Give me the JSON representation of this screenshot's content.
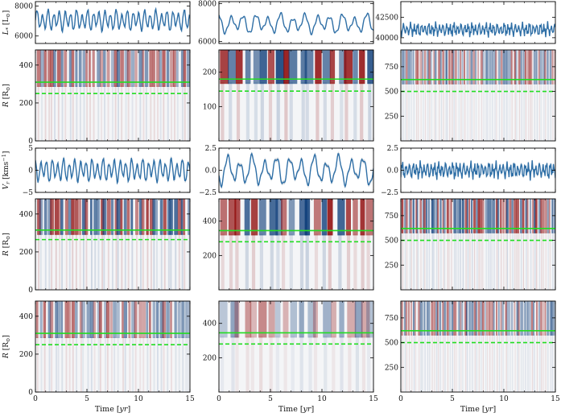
{
  "chart_data": {
    "type": "line+heatmap grid",
    "xlabel": "Time [yr]",
    "xlabel_parts": {
      "pre": "Time [",
      "var": "yr",
      "post": "]"
    },
    "xlim": [
      0,
      15
    ],
    "xticks": [
      "0",
      "5",
      "10",
      "15"
    ],
    "row_labels": {
      "lum": {
        "var": "L",
        "sub": "*",
        "unit": "[L",
        "unitsub": "⊙",
        "close": "]"
      },
      "rad": {
        "var": "R",
        "unit": "[R",
        "unitsub": "⊙",
        "close": "]"
      },
      "vel": {
        "var": "V",
        "sub": "r",
        "unit": "[kms",
        "unitsup": "−1",
        "close": "]"
      }
    },
    "rows": [
      {
        "kind": "line",
        "series": "luminosity",
        "panels": [
          {
            "ylim": [
              5500,
              8300
            ],
            "yticks": [
              {
                "v": 6000,
                "label": "6000"
              },
              {
                "v": 8000,
                "label": "8000"
              }
            ],
            "mean": 7050,
            "amp": 700,
            "period": 0.55,
            "noise": 0.15
          },
          {
            "ylim": [
              5900,
              8100
            ],
            "yticks": [
              {
                "v": 6000,
                "label": "6000"
              },
              {
                "v": 8000,
                "label": "8000"
              }
            ],
            "mean": 6950,
            "amp": 500,
            "period": 1.2,
            "noise": 0.25
          },
          {
            "ylim": [
              39300,
              44400
            ],
            "yticks": [
              {
                "v": 40000,
                "label": "40000"
              },
              {
                "v": 42500,
                "label": "42500"
              }
            ],
            "mean": 41000,
            "amp": 700,
            "period": 0.35,
            "noise": 0.6
          }
        ]
      },
      {
        "kind": "map",
        "series": "radius-time map 1",
        "panels": [
          {
            "ylim": [
              0,
              480
            ],
            "yticks": [
              {
                "v": 0,
                "label": "0"
              },
              {
                "v": 200,
                "label": "200"
              },
              {
                "v": 400,
                "label": "400"
              }
            ],
            "solid": 310,
            "dashed": 250,
            "period": 0.55,
            "alpha": 0.6
          },
          {
            "ylim": [
              0,
              265
            ],
            "yticks": [
              {
                "v": 100,
                "label": "100"
              },
              {
                "v": 200,
                "label": "200"
              }
            ],
            "solid": 180,
            "dashed": 145,
            "period": 1.2,
            "alpha": 0.9
          },
          {
            "ylim": [
              0,
              920
            ],
            "yticks": [
              {
                "v": 250,
                "label": "250"
              },
              {
                "v": 500,
                "label": "500"
              },
              {
                "v": 750,
                "label": "750"
              }
            ],
            "solid": 620,
            "dashed": 500,
            "period": 0.35,
            "alpha": 0.55
          }
        ]
      },
      {
        "kind": "line",
        "series": "radial velocity",
        "panels": [
          {
            "ylim": [
              -5,
              5
            ],
            "yticks": [
              {
                "v": -5,
                "label": "−5"
              },
              {
                "v": 0,
                "label": "0"
              },
              {
                "v": 5,
                "label": "5"
              }
            ],
            "mean": 0,
            "amp": 2.6,
            "period": 0.55,
            "noise": 0.15
          },
          {
            "ylim": [
              -2.5,
              2.5
            ],
            "yticks": [
              {
                "v": -2.5,
                "label": "−2.5"
              },
              {
                "v": 0,
                "label": "0.0"
              },
              {
                "v": 2.5,
                "label": "2.5"
              }
            ],
            "mean": 0,
            "amp": 1.6,
            "period": 1.2,
            "noise": 0.25
          },
          {
            "ylim": [
              -2.5,
              2.5
            ],
            "yticks": [
              {
                "v": -2.5,
                "label": "−2.5"
              },
              {
                "v": 0,
                "label": "0.0"
              },
              {
                "v": 2.5,
                "label": "2.5"
              }
            ],
            "mean": 0,
            "amp": 0.8,
            "period": 0.35,
            "noise": 0.6
          }
        ]
      },
      {
        "kind": "map",
        "series": "radius-time map 2",
        "panels": [
          {
            "ylim": [
              0,
              480
            ],
            "yticks": [
              {
                "v": 0,
                "label": "0"
              },
              {
                "v": 200,
                "label": "200"
              },
              {
                "v": 400,
                "label": "400"
              }
            ],
            "solid": 315,
            "dashed": 265,
            "period": 0.55,
            "alpha": 0.75
          },
          {
            "ylim": [
              0,
              530
            ],
            "yticks": [
              {
                "v": 200,
                "label": "200"
              },
              {
                "v": 400,
                "label": "400"
              }
            ],
            "solid": 345,
            "dashed": 280,
            "period": 1.2,
            "alpha": 0.9
          },
          {
            "ylim": [
              0,
              920
            ],
            "yticks": [
              {
                "v": 250,
                "label": "250"
              },
              {
                "v": 500,
                "label": "500"
              },
              {
                "v": 750,
                "label": "750"
              }
            ],
            "solid": 620,
            "dashed": 500,
            "period": 0.35,
            "alpha": 0.75
          }
        ]
      },
      {
        "kind": "map",
        "series": "radius-time map 3",
        "panels": [
          {
            "ylim": [
              0,
              480
            ],
            "yticks": [
              {
                "v": 0,
                "label": "0"
              },
              {
                "v": 200,
                "label": "200"
              },
              {
                "v": 400,
                "label": "400"
              }
            ],
            "solid": 310,
            "dashed": 250,
            "period": 0.55,
            "alpha": 0.55
          },
          {
            "ylim": [
              0,
              530
            ],
            "yticks": [
              {
                "v": 200,
                "label": "200"
              },
              {
                "v": 400,
                "label": "400"
              }
            ],
            "solid": 345,
            "dashed": 280,
            "period": 1.2,
            "alpha": 0.45
          },
          {
            "ylim": [
              0,
              920
            ],
            "yticks": [
              {
                "v": 250,
                "label": "250"
              },
              {
                "v": 500,
                "label": "500"
              },
              {
                "v": 750,
                "label": "750"
              }
            ],
            "solid": 620,
            "dashed": 500,
            "period": 0.35,
            "alpha": 0.55
          }
        ]
      }
    ],
    "colors": {
      "line": "#2f6fa6",
      "band": "#b9c3cc",
      "red": "#8b0000",
      "blue": "#0b3b78",
      "green": "#22dd22",
      "axis": "#000000"
    }
  }
}
